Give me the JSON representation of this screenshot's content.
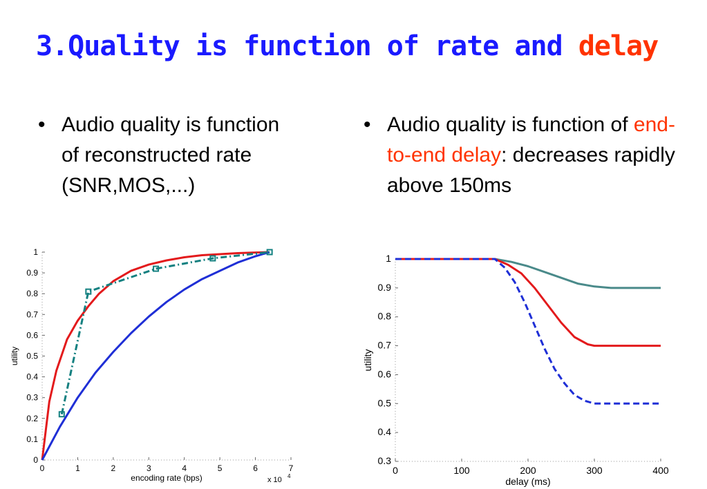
{
  "slide": {
    "title_main": "3.Quality is function of rate and",
    "title_accent": "delay",
    "left_bullet": "Audio quality is function of reconstructed rate (SNR,MOS,...)",
    "right_bullet_pre": "Audio quality is  function of",
    "right_bullet_red": "end-to-end delay",
    "right_bullet_post": ": decreases rapidly above 150ms",
    "bullet_symbol": "•"
  },
  "colors": {
    "title": "#1a1aff",
    "accent": "#ff3300",
    "red_curve": "#e31a1c",
    "blue_curve": "#1f2fd6",
    "teal_curve": "#138080",
    "gray_curve": "#4a8a8a"
  },
  "chart_data": [
    {
      "type": "line",
      "xlabel": "encoding rate (bps)",
      "ylabel": "utility",
      "x_multiplier": "x 10",
      "x_multiplier_exp": "4",
      "xlim": [
        0,
        7
      ],
      "ylim": [
        0,
        1
      ],
      "xticks": [
        0,
        1,
        2,
        3,
        4,
        5,
        6,
        7
      ],
      "yticks": [
        0,
        0.1,
        0.2,
        0.3,
        0.4,
        0.5,
        0.6,
        0.7,
        0.8,
        0.9,
        1
      ],
      "series": [
        {
          "style": "solid-red",
          "x": [
            0,
            0.2,
            0.4,
            0.7,
            1.0,
            1.3,
            1.6,
            2.0,
            2.5,
            3.0,
            3.5,
            4.0,
            4.5,
            5.0,
            5.5,
            6.0,
            6.4
          ],
          "y": [
            0,
            0.28,
            0.43,
            0.58,
            0.67,
            0.74,
            0.8,
            0.86,
            0.91,
            0.94,
            0.96,
            0.975,
            0.985,
            0.99,
            0.995,
            0.998,
            1.0
          ]
        },
        {
          "style": "solid-blue",
          "x": [
            0,
            0.5,
            1.0,
            1.5,
            2.0,
            2.5,
            3.0,
            3.5,
            4.0,
            4.5,
            5.0,
            5.5,
            6.0,
            6.4
          ],
          "y": [
            0,
            0.16,
            0.3,
            0.42,
            0.52,
            0.61,
            0.69,
            0.76,
            0.82,
            0.87,
            0.91,
            0.95,
            0.98,
            1.0
          ]
        },
        {
          "style": "dashdot-teal-markers",
          "x": [
            0.55,
            1.3,
            3.2,
            4.8,
            6.4
          ],
          "y": [
            0.22,
            0.81,
            0.92,
            0.97,
            1.0
          ]
        }
      ]
    },
    {
      "type": "line",
      "xlabel": "delay (ms)",
      "ylabel": "utility",
      "xlim": [
        0,
        400
      ],
      "ylim": [
        0.3,
        1
      ],
      "xticks": [
        0,
        100,
        200,
        300,
        400
      ],
      "yticks": [
        0.3,
        0.4,
        0.5,
        0.6,
        0.7,
        0.8,
        0.9,
        1
      ],
      "series": [
        {
          "style": "solid-gray",
          "x": [
            0,
            150,
            175,
            200,
            225,
            250,
            275,
            300,
            325,
            350,
            375,
            400
          ],
          "y": [
            1,
            1,
            0.99,
            0.975,
            0.955,
            0.935,
            0.915,
            0.905,
            0.9,
            0.9,
            0.9,
            0.9
          ]
        },
        {
          "style": "solid-red",
          "x": [
            0,
            150,
            170,
            190,
            210,
            230,
            250,
            270,
            290,
            300,
            320,
            350,
            400
          ],
          "y": [
            1,
            1,
            0.98,
            0.95,
            0.9,
            0.84,
            0.78,
            0.73,
            0.705,
            0.7,
            0.7,
            0.7,
            0.7
          ]
        },
        {
          "style": "dashed-blue",
          "x": [
            0,
            150,
            165,
            180,
            195,
            210,
            225,
            240,
            255,
            270,
            285,
            300,
            330,
            400
          ],
          "y": [
            1,
            1,
            0.97,
            0.92,
            0.85,
            0.77,
            0.69,
            0.62,
            0.57,
            0.53,
            0.51,
            0.5,
            0.5,
            0.5
          ]
        }
      ]
    }
  ]
}
